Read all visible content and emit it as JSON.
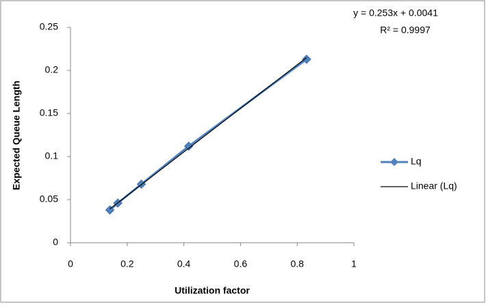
{
  "chart_data": {
    "type": "scatter",
    "x_label": "Utilization factor",
    "y_label": "Expected Queue Length",
    "annotations": [
      "y = 0.253x + 0.0041",
      "R² = 0.9997"
    ],
    "series": [
      {
        "name": "Lq",
        "color": "#4f81bd",
        "marker": "diamond",
        "x": [
          0.139,
          0.167,
          0.25,
          0.417,
          0.833
        ],
        "values": [
          0.038,
          0.046,
          0.068,
          0.112,
          0.213
        ]
      },
      {
        "name": "Linear (Lq)",
        "color": "#000000",
        "x": [
          0.139,
          0.833
        ],
        "values": [
          0.0393,
          0.2149
        ]
      }
    ],
    "xlim": [
      0,
      1
    ],
    "xticks": [
      0,
      0.2,
      0.4,
      0.6,
      0.8,
      1
    ],
    "ylim": [
      0,
      0.25
    ],
    "yticks": [
      0,
      0.05,
      0.1,
      0.15,
      0.2,
      0.25
    ],
    "grid": false,
    "legend": "right"
  }
}
